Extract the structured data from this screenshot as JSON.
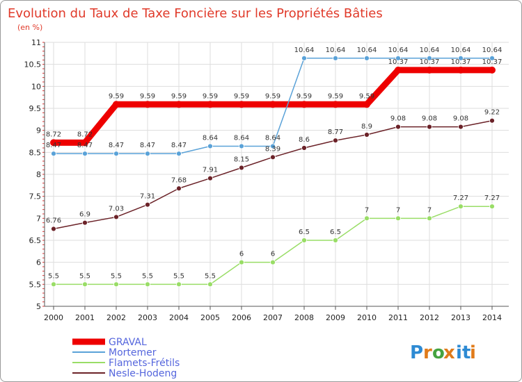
{
  "chart_data": {
    "type": "line",
    "title": "Evolution du Taux de Taxe Foncière sur les Propriétés Bâties",
    "subtitle": "(en %)",
    "xlabel": "",
    "ylabel": "",
    "ylim": [
      5,
      11
    ],
    "grid": true,
    "categories": [
      "2000",
      "2001",
      "2002",
      "2003",
      "2004",
      "2005",
      "2006",
      "2007",
      "2008",
      "2009",
      "2010",
      "2011",
      "2012",
      "2013",
      "2014"
    ],
    "y_ticks": [
      "5",
      "5.5",
      "6",
      "6.5",
      "7",
      "7.5",
      "8",
      "8.5",
      "9",
      "9.5",
      "10",
      "10.5",
      "11"
    ],
    "series": [
      {
        "name": "GRAVAL",
        "color": "#ee0000",
        "values": [
          8.72,
          8.72,
          9.59,
          9.59,
          9.59,
          9.59,
          9.59,
          9.59,
          9.59,
          9.59,
          9.59,
          10.37,
          10.37,
          10.37,
          10.37
        ]
      },
      {
        "name": "Mortemer",
        "color": "#5aa2d8",
        "values": [
          8.47,
          8.47,
          8.47,
          8.47,
          8.47,
          8.64,
          8.64,
          8.64,
          10.64,
          10.64,
          10.64,
          10.64,
          10.64,
          10.64,
          10.64
        ]
      },
      {
        "name": "Flamets-Frétils",
        "color": "#99dd66",
        "values": [
          5.5,
          5.5,
          5.5,
          5.5,
          5.5,
          5.5,
          6,
          6,
          6.5,
          6.5,
          7,
          7,
          7,
          7.27,
          7.27
        ]
      },
      {
        "name": "Nesle-Hodeng",
        "color": "#6b2228",
        "values": [
          6.76,
          6.9,
          7.03,
          7.31,
          7.68,
          7.91,
          8.15,
          8.39,
          8.6,
          8.77,
          8.9,
          9.08,
          9.08,
          9.08,
          9.22
        ]
      }
    ],
    "data_labels": {
      "GRAVAL": [
        "8.72",
        "8.72",
        "9.59",
        "9.59",
        "9.59",
        "9.59",
        "9.59",
        "9.59",
        "9.59",
        "9.59",
        "9.59",
        "10.37",
        "10.37",
        "10.37",
        "10.37"
      ],
      "Mortemer": [
        "8.47",
        "8.47",
        "8.47",
        "8.47",
        "8.47",
        "8.64",
        "8.64",
        "8.64",
        "10.64",
        "10.64",
        "10.64",
        "10.64",
        "10.64",
        "10.64",
        "10.64"
      ],
      "Flamets-Frétils": [
        "5.5",
        "5.5",
        "5.5",
        "5.5",
        "5.5",
        "5.5",
        "6",
        "6",
        "6.5",
        "6.5",
        "7",
        "7",
        "7",
        "7.27",
        "7.27"
      ],
      "Nesle-Hodeng": [
        "6.76",
        "6.9",
        "7.03",
        "7.31",
        "7.68",
        "7.91",
        "8.15",
        "8.39",
        "8.6",
        "8.77",
        "8.9",
        "9.08",
        "9.08",
        "9.08",
        "9.22"
      ]
    },
    "legend": [
      "GRAVAL",
      "Mortemer",
      "Flamets-Frétils",
      "Nesle-Hodeng"
    ],
    "legend_position": "bottom-left"
  },
  "logo": {
    "text": "Proxiti",
    "colors": [
      "#2d8ad3",
      "#e07b1a",
      "#45a340",
      "#e07b1a",
      "#2d8ad3",
      "#2d8ad3",
      "#e07b1a"
    ]
  }
}
